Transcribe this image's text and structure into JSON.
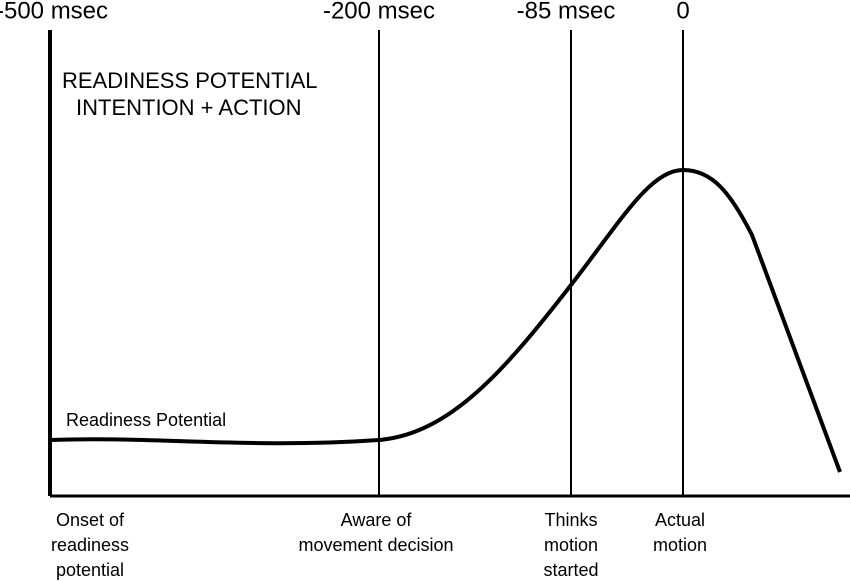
{
  "title": {
    "lines": [
      "READINESS POTENTIAL",
      "INTENTION + ACTION"
    ]
  },
  "curve_label": "Readiness Potential",
  "markers": [
    {
      "time": "-500 msec",
      "event": [
        "Onset of",
        "readiness",
        "potential"
      ]
    },
    {
      "time": "-200 msec",
      "event": [
        "Aware of",
        "movement decision"
      ]
    },
    {
      "time": "-85 msec",
      "event": [
        "Thinks",
        "motion",
        "started"
      ]
    },
    {
      "time": "0",
      "event": [
        "Actual",
        "motion"
      ]
    }
  ]
}
